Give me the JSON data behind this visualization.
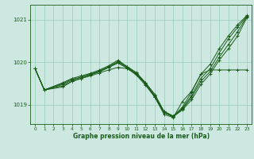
{
  "title": "Graphe pression niveau de la mer (hPa)",
  "xlabel": "Graphe pression niveau de la mer (hPa)",
  "xlim": [
    -0.5,
    23.5
  ],
  "ylim": [
    1018.55,
    1021.35
  ],
  "yticks": [
    1019,
    1020,
    1021
  ],
  "xticks": [
    0,
    1,
    2,
    3,
    4,
    5,
    6,
    7,
    8,
    9,
    10,
    11,
    12,
    13,
    14,
    15,
    16,
    17,
    18,
    19,
    20,
    21,
    22,
    23
  ],
  "background_color": "#cce8e0",
  "grid_color": "#99ccbb",
  "line_color": "#1a5c1a",
  "lines": [
    {
      "x": [
        0,
        1,
        3,
        4,
        5,
        6,
        7,
        8,
        9,
        10,
        11,
        12,
        13,
        14,
        15,
        16,
        17,
        18,
        19,
        20,
        21,
        22,
        23
      ],
      "y": [
        1019.85,
        1019.35,
        1019.5,
        1019.6,
        1019.65,
        1019.72,
        1019.78,
        1019.88,
        1020.0,
        1019.88,
        1019.72,
        1019.48,
        1019.2,
        1018.82,
        1018.72,
        1018.95,
        1019.3,
        1019.72,
        1019.95,
        1020.32,
        1020.62,
        1020.88,
        1021.1
      ],
      "marker": "+"
    },
    {
      "x": [
        0,
        1,
        3,
        4,
        5,
        6,
        7,
        8,
        9,
        10,
        11,
        12,
        13,
        14,
        15,
        16,
        17,
        18,
        19,
        20,
        21,
        22,
        23
      ],
      "y": [
        1019.85,
        1019.35,
        1019.52,
        1019.62,
        1019.68,
        1019.74,
        1019.82,
        1019.92,
        1020.05,
        1019.9,
        1019.76,
        1019.52,
        1019.25,
        1018.85,
        1018.74,
        1018.92,
        1019.22,
        1019.62,
        1019.85,
        1020.22,
        1020.55,
        1020.82,
        1021.08
      ],
      "marker": "+"
    },
    {
      "x": [
        0,
        1,
        3,
        4,
        5,
        6,
        7,
        8,
        9,
        10,
        11,
        12,
        13,
        14,
        15,
        16,
        17,
        18,
        19,
        20,
        21,
        22,
        23
      ],
      "y": [
        1019.85,
        1019.35,
        1019.48,
        1019.58,
        1019.65,
        1019.72,
        1019.8,
        1019.9,
        1020.02,
        1019.89,
        1019.74,
        1019.5,
        1019.22,
        1018.84,
        1018.73,
        1018.9,
        1019.18,
        1019.55,
        1019.78,
        1020.12,
        1020.42,
        1020.72,
        1021.07
      ],
      "marker": "+"
    },
    {
      "x": [
        0,
        1,
        3,
        4,
        5,
        6,
        7,
        8,
        9,
        10,
        11,
        12,
        13,
        14,
        15,
        16,
        17,
        18,
        19,
        20,
        21,
        22,
        23
      ],
      "y": [
        1019.85,
        1019.35,
        1019.45,
        1019.55,
        1019.62,
        1019.7,
        1019.78,
        1019.88,
        1019.98,
        1019.86,
        1019.7,
        1019.46,
        1019.18,
        1018.82,
        1018.72,
        1018.88,
        1019.12,
        1019.48,
        1019.72,
        1020.05,
        1020.32,
        1020.62,
        1021.05
      ],
      "marker": "+"
    },
    {
      "x": [
        0,
        1,
        3,
        4,
        5,
        6,
        7,
        8,
        9,
        10,
        11,
        12,
        13,
        14,
        15,
        16,
        17,
        18,
        19,
        20,
        21,
        22,
        23
      ],
      "y": [
        1019.85,
        1019.35,
        1019.42,
        1019.55,
        1019.62,
        1019.68,
        1019.75,
        1019.82,
        1019.88,
        1019.85,
        1019.72,
        1019.52,
        1019.18,
        1018.78,
        1018.7,
        1019.08,
        1019.32,
        1019.72,
        1019.82,
        1019.82,
        1019.82,
        1019.82,
        1019.82
      ],
      "marker": "+"
    }
  ]
}
